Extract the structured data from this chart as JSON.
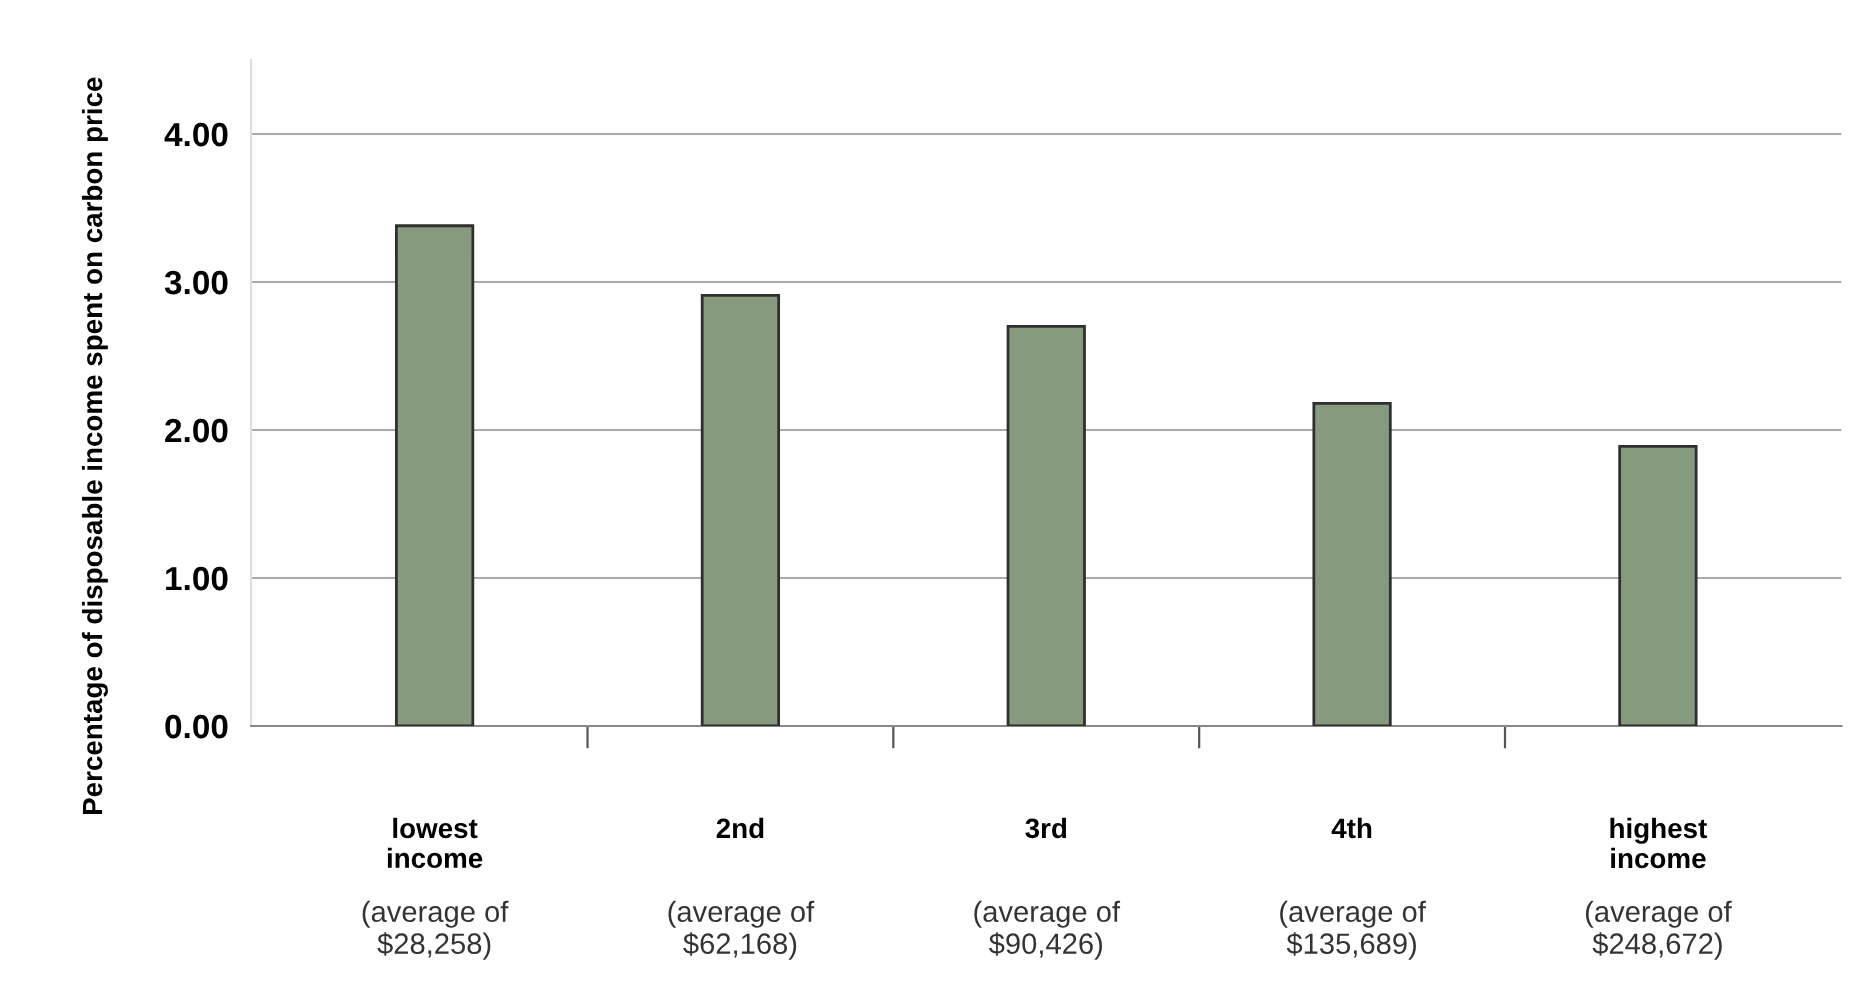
{
  "chart_data": {
    "type": "bar",
    "ylabel": "Percentage of disposable income spent on carbon price",
    "categories": [
      "lowest\nincome",
      "2nd",
      "3rd",
      "4th",
      "highest\nincome"
    ],
    "values": [
      3.38,
      2.91,
      2.7,
      2.18,
      1.89
    ],
    "color": "#869a7e",
    "ylim": [
      0,
      4.5
    ],
    "yticks": [
      {
        "value": 0,
        "label": "0.00"
      },
      {
        "value": 1,
        "label": "1.00"
      },
      {
        "value": 2,
        "label": "2.00"
      },
      {
        "value": 3,
        "label": "3.00"
      },
      {
        "value": 4,
        "label": "4.00"
      }
    ],
    "grid": "y",
    "annotations": [
      "(average of\n$28,258)",
      "(average of\n$62,168)",
      "(average of\n$90,426)",
      "(average of\n$135,689)",
      "(average of\n$248,672)"
    ]
  }
}
